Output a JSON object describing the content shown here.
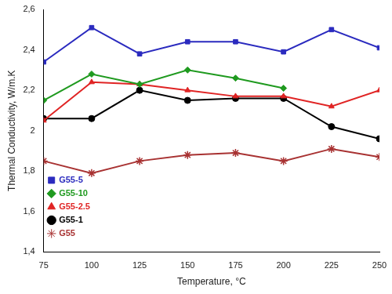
{
  "chart_data": {
    "type": "line",
    "x_label": "Temperature, °C",
    "y_label": "Thermal Conductivity, W/m.K",
    "x": [
      75,
      100,
      125,
      150,
      175,
      200,
      225,
      250
    ],
    "xlim": [
      75,
      250
    ],
    "xticks": [
      75,
      100,
      125,
      150,
      175,
      200,
      225,
      250
    ],
    "ylim": [
      1.4,
      2.6
    ],
    "yticks": [
      {
        "value": 1.4,
        "label": "1,4"
      },
      {
        "value": 1.6,
        "label": "1,6"
      },
      {
        "value": 1.8,
        "label": "1,8"
      },
      2,
      {
        "value": 2.2,
        "label": "2,2"
      },
      {
        "value": 2.4,
        "label": "2,4"
      },
      {
        "value": 2.6,
        "label": "2,6"
      }
    ],
    "grid": false,
    "legend": "lower left",
    "series": [
      {
        "name": "G55-5",
        "color": "#2b2bbf",
        "marker": "square",
        "line_style": "solid",
        "values": [
          2.34,
          2.51,
          2.38,
          2.44,
          2.44,
          2.39,
          2.5,
          2.41
        ]
      },
      {
        "name": "G55-10",
        "color": "#1f9a1f",
        "marker": "diamond",
        "line_style": "solid",
        "values": [
          2.15,
          2.28,
          2.23,
          2.3,
          2.26,
          2.21,
          null,
          null
        ]
      },
      {
        "name": "G55-2.5",
        "color": "#e02424",
        "marker": "triangle",
        "line_style": "solid",
        "values": [
          2.05,
          2.24,
          2.23,
          2.2,
          2.17,
          2.17,
          2.12,
          2.2
        ]
      },
      {
        "name": "G55-1",
        "color": "#000000",
        "marker": "circle",
        "line_style": "solid",
        "values": [
          2.06,
          2.06,
          2.2,
          2.15,
          2.16,
          2.16,
          2.02,
          1.96
        ]
      },
      {
        "name": "G55",
        "color": "#a83232",
        "marker": "star",
        "line_style": "solid",
        "values": [
          1.85,
          1.79,
          1.85,
          1.88,
          1.89,
          1.85,
          1.91,
          1.87
        ]
      }
    ]
  }
}
